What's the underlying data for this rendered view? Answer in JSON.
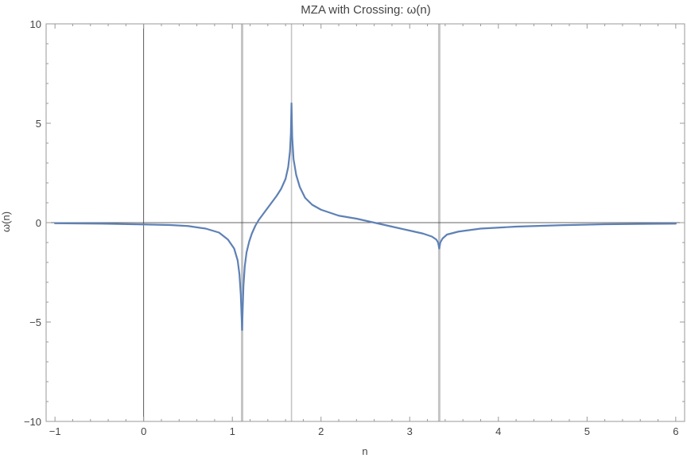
{
  "chart_data": {
    "type": "line",
    "title": "MZA with Crossing: ω(n)",
    "xlabel": "n",
    "ylabel": "ω(n)",
    "xlim": [
      -1.1,
      6.1
    ],
    "ylim": [
      -10,
      10
    ],
    "xticks": [
      -1,
      0,
      1,
      2,
      3,
      4,
      5,
      6
    ],
    "xtick_labels": [
      "−1",
      "0",
      "1",
      "2",
      "3",
      "4",
      "5",
      "6"
    ],
    "yticks": [
      -10,
      -5,
      0,
      5,
      10
    ],
    "ytick_labels": [
      "−10",
      "−5",
      "0",
      "5",
      "10"
    ],
    "grid": false,
    "frame": true,
    "vertical_reference_lines": [
      {
        "x": 1.11,
        "color": "#c4c4c4",
        "width": "thick"
      },
      {
        "x": 1.667,
        "color": "#c4c4c4",
        "width": "thin"
      },
      {
        "x": 3.333,
        "color": "#c4c4c4",
        "width": "thick"
      }
    ],
    "series": [
      {
        "color": "#5e81b5",
        "x": [
          -1.0,
          -0.5,
          0.0,
          0.3,
          0.5,
          0.7,
          0.85,
          0.95,
          1.02,
          1.06,
          1.08,
          1.095,
          1.105,
          1.11,
          1.115,
          1.125,
          1.14,
          1.16,
          1.19,
          1.22,
          1.26,
          1.3,
          1.35,
          1.4,
          1.45,
          1.5,
          1.55,
          1.6,
          1.63,
          1.65,
          1.66,
          1.667,
          1.675,
          1.69,
          1.72,
          1.76,
          1.82,
          1.9,
          2.0,
          2.2,
          2.4,
          2.6,
          2.8,
          3.0,
          3.15,
          3.25,
          3.3,
          3.32,
          3.333,
          3.345,
          3.37,
          3.42,
          3.55,
          3.8,
          4.2,
          4.7,
          5.2,
          5.7,
          6.0
        ],
        "y": [
          -0.03,
          -0.05,
          -0.09,
          -0.12,
          -0.17,
          -0.3,
          -0.5,
          -0.85,
          -1.3,
          -1.9,
          -2.6,
          -3.6,
          -4.8,
          -5.4,
          -4.6,
          -3.2,
          -2.2,
          -1.5,
          -0.95,
          -0.55,
          -0.15,
          0.15,
          0.45,
          0.75,
          1.05,
          1.35,
          1.7,
          2.2,
          2.8,
          3.6,
          4.5,
          6.0,
          4.3,
          3.2,
          2.4,
          1.8,
          1.25,
          0.9,
          0.65,
          0.35,
          0.2,
          0.0,
          -0.2,
          -0.4,
          -0.55,
          -0.7,
          -0.85,
          -1.0,
          -1.3,
          -1.0,
          -0.8,
          -0.6,
          -0.45,
          -0.3,
          -0.2,
          -0.13,
          -0.08,
          -0.06,
          -0.05
        ]
      }
    ]
  }
}
